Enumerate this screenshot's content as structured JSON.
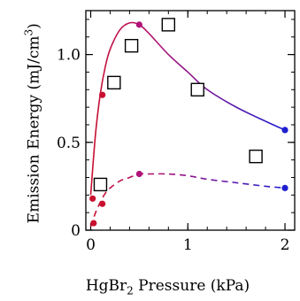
{
  "chart_data": {
    "type": "scatter",
    "xlabel": {
      "prefix": "HgBr",
      "sub": "2",
      "suffix": " Pressure (kPa)"
    },
    "ylabel": {
      "prefix": "Emission Energy (mJ/cm",
      "sup": "3",
      "suffix": ")"
    },
    "xlim": [
      -0.05,
      2.1
    ],
    "ylim": [
      0,
      1.25
    ],
    "x_ticks": [
      0,
      1,
      2
    ],
    "x_tick_labels": [
      "0",
      "1",
      "2"
    ],
    "y_ticks": [
      0,
      0.5,
      1.0
    ],
    "y_tick_labels": [
      "0",
      "0.5",
      "1.0"
    ],
    "grid": false,
    "legend": "none",
    "series": [
      {
        "style": "squares",
        "color": "#000000",
        "x": [
          0.1,
          0.24,
          0.42,
          0.8,
          1.1,
          1.7
        ],
        "y": [
          0.26,
          0.84,
          1.05,
          1.17,
          0.8,
          0.42
        ]
      },
      {
        "style": "solid-line",
        "color_start": "#c8102e",
        "color_end": "#1f1fd0",
        "x": [
          0,
          0.05,
          0.1,
          0.15,
          0.2,
          0.3,
          0.4,
          0.5,
          0.6,
          0.8,
          1.0,
          1.2,
          1.5,
          1.8,
          2.0
        ],
        "y": [
          0.2,
          0.55,
          0.78,
          0.93,
          1.03,
          1.14,
          1.18,
          1.17,
          1.12,
          1.0,
          0.9,
          0.8,
          0.7,
          0.62,
          0.57
        ]
      },
      {
        "style": "solid-markers",
        "colors": [
          "#c8102e",
          "#c8102e",
          "#b01478",
          "#1f1fd0"
        ],
        "x": [
          0.02,
          0.12,
          0.5,
          2.0
        ],
        "y": [
          0.18,
          0.77,
          1.17,
          0.57
        ]
      },
      {
        "style": "dashed-line",
        "color_start": "#c8102e",
        "color_end": "#1f1fd0",
        "x": [
          0,
          0.05,
          0.1,
          0.15,
          0.2,
          0.3,
          0.4,
          0.5,
          0.6,
          0.8,
          1.0,
          1.2,
          1.5,
          1.8,
          2.0
        ],
        "y": [
          0.02,
          0.1,
          0.16,
          0.21,
          0.24,
          0.28,
          0.3,
          0.32,
          0.32,
          0.32,
          0.31,
          0.29,
          0.27,
          0.25,
          0.24
        ]
      },
      {
        "style": "dashed-markers",
        "colors": [
          "#c8102e",
          "#c8102e",
          "#b01478",
          "#1f1fd0"
        ],
        "x": [
          0.03,
          0.12,
          0.5,
          2.0
        ],
        "y": [
          0.04,
          0.15,
          0.32,
          0.24
        ]
      }
    ]
  }
}
